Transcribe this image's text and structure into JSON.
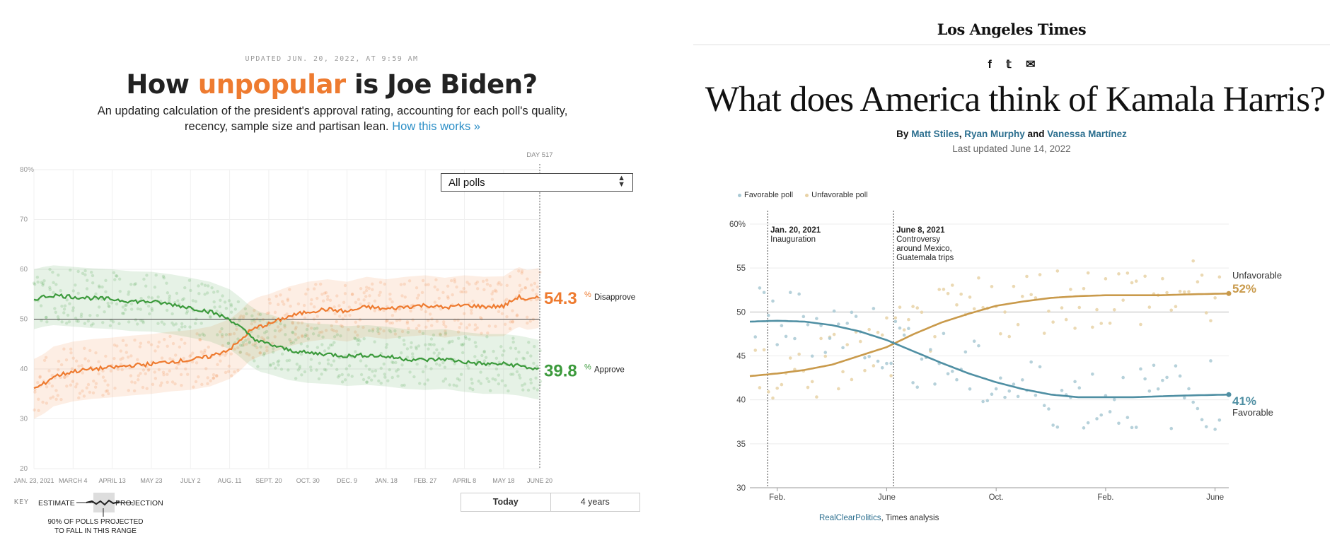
{
  "left": {
    "updated": "UPDATED JUN. 20, 2022, AT 9:59 AM",
    "title_pre": "How ",
    "title_highlight": "unpopular",
    "title_post": " is Joe Biden?",
    "subtitle": "An updating calculation of the president's approval rating, accounting for each poll's quality, recency, sample size and partisan lean.",
    "how_link": "How this works »",
    "select_value": "All polls",
    "day_label": "DAY 517",
    "key_label": "KEY",
    "key_estimate": "ESTIMATE",
    "key_projection": "PROJECTION",
    "key_note": "90% OF POLLS PROJECTED TO FALL IN THIS RANGE",
    "toggle_today": "Today",
    "toggle_years": "4 years",
    "colors": {
      "disapprove": "#ee7b30",
      "approve": "#3c9a3c",
      "title_highlight": "#ee7b30",
      "link": "#2c8fc7"
    }
  },
  "right": {
    "logo": "Los Angeles Times",
    "social": [
      "f",
      "𝕥",
      "✉"
    ],
    "social_icons": [
      "facebook-icon",
      "twitter-icon",
      "email-icon"
    ],
    "title": "What does America think of Kamala Harris?",
    "by": "By",
    "authors": [
      "Matt Stiles",
      "Ryan Murphy",
      "Vanessa Martínez"
    ],
    "and": "and",
    "last_updated": "Last updated June 14, 2022",
    "legend": [
      "Favorable poll",
      "Unfavorable poll"
    ],
    "source_link": "RealClearPolitics",
    "source_rest": ", Times analysis",
    "colors": {
      "favorable": "#4f8fa3",
      "unfavorable": "#c99a4b",
      "author": "#2c6f8f"
    }
  },
  "chart_data": [
    {
      "type": "line",
      "title": "How unpopular is Joe Biden?",
      "y_ticks": [
        "80%",
        "70",
        "60",
        "50",
        "40",
        "30",
        "20"
      ],
      "ylim": [
        20,
        80
      ],
      "x_ticks": [
        "JAN. 23, 2021",
        "MARCH 4",
        "APRIL 13",
        "MAY 23",
        "JULY 2",
        "AUG. 11",
        "SEPT. 20",
        "OCT. 30",
        "DEC. 9",
        "JAN. 18",
        "FEB. 27",
        "APRIL 8",
        "MAY 18",
        "JUNE 20"
      ],
      "x_days": [
        0,
        40,
        80,
        120,
        160,
        200,
        240,
        280,
        320,
        360,
        400,
        440,
        480,
        517
      ],
      "reference_line": 50,
      "series": [
        {
          "name": "Disapprove",
          "final": "54.3",
          "unit": "%",
          "color": "#ee7b30",
          "x": [
            0,
            10,
            20,
            40,
            60,
            80,
            100,
            120,
            140,
            160,
            180,
            200,
            210,
            220,
            230,
            240,
            260,
            280,
            300,
            320,
            340,
            360,
            380,
            400,
            420,
            440,
            460,
            480,
            495,
            505,
            517
          ],
          "y": [
            36,
            37,
            38.5,
            39.5,
            40,
            40.3,
            40.7,
            41,
            41.5,
            41.8,
            42.5,
            44,
            45.5,
            47.5,
            48.5,
            49,
            50.5,
            51.5,
            52,
            51.5,
            52.5,
            52,
            52.5,
            52.8,
            52.3,
            52.8,
            52.5,
            52.6,
            54.5,
            53.8,
            54.3
          ]
        },
        {
          "name": "Approve",
          "final": "39.8",
          "unit": "%",
          "color": "#3c9a3c",
          "x": [
            0,
            10,
            20,
            40,
            60,
            80,
            100,
            120,
            140,
            160,
            180,
            200,
            210,
            220,
            230,
            240,
            260,
            280,
            300,
            320,
            340,
            360,
            380,
            400,
            420,
            440,
            460,
            480,
            495,
            505,
            517
          ],
          "y": [
            54,
            54.5,
            54.8,
            54.5,
            54.2,
            54,
            53.6,
            53.5,
            53,
            52.3,
            51.5,
            50,
            48.5,
            46.8,
            45.5,
            45,
            43.8,
            43.2,
            43,
            42.6,
            42.8,
            42.5,
            42,
            41.8,
            42,
            41.4,
            41,
            41,
            40.7,
            40.3,
            39.8
          ]
        }
      ]
    },
    {
      "type": "line",
      "title": "What does America think of Kamala Harris?",
      "y_ticks": [
        "60%",
        "55",
        "50",
        "45",
        "40",
        "35",
        "30"
      ],
      "ylim": [
        30,
        60
      ],
      "x_ticks": [
        "Feb.",
        "June",
        "Oct.",
        "Feb.",
        "June"
      ],
      "x_months": [
        1,
        5,
        9,
        13,
        17
      ],
      "reference_line": 50,
      "annotations": [
        {
          "month": 0.65,
          "lines": [
            "Jan. 20, 2021",
            "Inauguration"
          ]
        },
        {
          "month": 5.25,
          "lines": [
            "June 8, 2021",
            "Controversy",
            "around Mexico,",
            "Guatemala trips"
          ]
        }
      ],
      "series": [
        {
          "name": "Unfavorable",
          "final": "52%",
          "color": "#c99a4b",
          "x": [
            0,
            1,
            2,
            3,
            4,
            5,
            6,
            7,
            8,
            9,
            10,
            11,
            12,
            13,
            14,
            15,
            16,
            17.5
          ],
          "y": [
            42.7,
            43,
            43.4,
            44,
            45,
            46,
            47.5,
            48.8,
            49.8,
            50.7,
            51.2,
            51.6,
            51.8,
            51.9,
            51.9,
            51.9,
            52,
            52.1
          ]
        },
        {
          "name": "Favorable",
          "final": "41%",
          "color": "#4f8fa3",
          "x": [
            0,
            1,
            2,
            3,
            4,
            5,
            6,
            7,
            8,
            9,
            10,
            11,
            12,
            13,
            14,
            15,
            16,
            17.5
          ],
          "y": [
            48.9,
            49,
            48.9,
            48.5,
            47.8,
            46.8,
            45.5,
            44.2,
            43,
            42,
            41.2,
            40.6,
            40.3,
            40.3,
            40.3,
            40.4,
            40.5,
            40.6
          ]
        }
      ]
    }
  ]
}
